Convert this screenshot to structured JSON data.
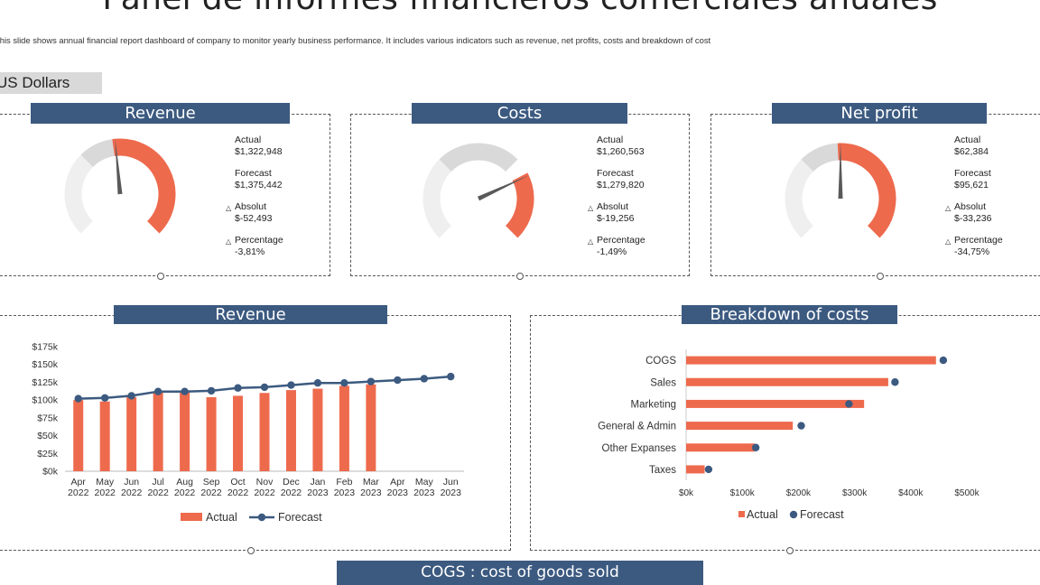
{
  "page": {
    "title": "Panel de informes financieros comerciales anuales",
    "subtitle": "This slide shows annual financial report dashboard of company to monitor  yearly business performance. It includes various indicators such as revenue, net profits, costs and breakdown of cost",
    "currency": "US Dollars",
    "footer": "COGS : cost of goods sold"
  },
  "colors": {
    "accent": "#ee6a4d",
    "navy": "#3c5a80",
    "gray": "#d9d9d9",
    "light": "#efefef",
    "needle": "#595959"
  },
  "gauges": [
    {
      "header": "Revenue",
      "actual_label": "Actual",
      "actual": "$1,322,948",
      "forecast_label": "Forecast",
      "forecast": "$1,375,442",
      "absolute_label": "Absolut",
      "absolute": "$-52,493",
      "percentage_label": "Percentage",
      "percentage": "-3,81%",
      "actual_value": 1322948,
      "forecast_value": 1375442,
      "scale_max": 2750884
    },
    {
      "header": "Costs",
      "actual_label": "Actual",
      "actual": "$1,260,563",
      "forecast_label": "Forecast",
      "forecast": "$1,279,820",
      "absolute_label": "Absolut",
      "absolute": "$-19,256",
      "percentage_label": "Percentage",
      "percentage": "-1,49%",
      "actual_value": 1260563,
      "forecast_value": 1279820,
      "scale_max": 1700000
    },
    {
      "header": "Net profit",
      "actual_label": "Actual",
      "actual": "$62,384",
      "forecast_label": "Forecast",
      "forecast": "$95,621",
      "absolute_label": "Absolut",
      "absolute": "$-33,236",
      "percentage_label": "Percentage",
      "percentage": "-34,75%",
      "actual_value": 62384,
      "forecast_value": 95621,
      "scale_max": 124768
    }
  ],
  "revenue_header": "Revenue",
  "costs_header": "Breakdown of costs",
  "chart_data": [
    {
      "type": "bar",
      "categories": [
        "Apr 2022",
        "May 2022",
        "Jun 2022",
        "Jul 2022",
        "Aug 2022",
        "Sep 2022",
        "Oct 2022",
        "Nov 2022",
        "Dec 2022",
        "Jan 2023",
        "Feb 2023",
        "Mar 2023",
        "Apr 2023",
        "May 2023",
        "Jun 2023"
      ],
      "series": [
        {
          "name": "Actual",
          "kind": "bar",
          "values": [
            100000,
            98000,
            104000,
            112000,
            112000,
            104000,
            106000,
            110000,
            114000,
            116000,
            120000,
            122000,
            null,
            null,
            null
          ]
        },
        {
          "name": "Forecast",
          "kind": "line",
          "values": [
            102000,
            103000,
            106000,
            112000,
            112000,
            113000,
            117000,
            118000,
            121000,
            124000,
            124000,
            126000,
            128000,
            130000,
            133000
          ]
        }
      ],
      "yticks": [
        "$0k",
        "$25k",
        "$50k",
        "$75k",
        "$100k",
        "$125k",
        "$150k",
        "$175k"
      ],
      "ylim": [
        0,
        175000
      ],
      "legend": "bottom"
    },
    {
      "type": "bar",
      "orientation": "horizontal",
      "categories": [
        "COGS",
        "Sales",
        "Marketing",
        "General & Admin",
        "Other Expanses",
        "Taxes"
      ],
      "series": [
        {
          "name": "Actual",
          "kind": "bar",
          "values": [
            445000,
            360000,
            317000,
            190000,
            122000,
            33000
          ]
        },
        {
          "name": "Forecast",
          "kind": "dot",
          "values": [
            458000,
            372000,
            290000,
            205000,
            124000,
            40000
          ]
        }
      ],
      "xticks": [
        "$0k",
        "$100k",
        "$200k",
        "$300k",
        "$400k",
        "$500k"
      ],
      "xlim": [
        0,
        500000
      ],
      "legend": "bottom"
    }
  ]
}
